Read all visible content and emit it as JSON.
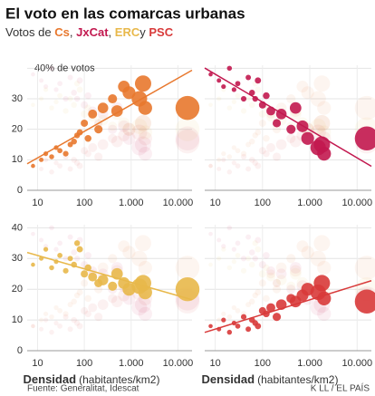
{
  "title": "El voto en las comarcas urbanas",
  "subtitle": {
    "text": "Votos de",
    "separators": [
      ",",
      ",",
      "y"
    ]
  },
  "source": "Fuente: Generalitat, Idescat",
  "credit": "K LL / EL PAÍS",
  "chart_data": [
    {
      "type": "scatter",
      "log_x": true,
      "grid": true,
      "trend": true,
      "ytick_labels": true,
      "x": [
        8,
        12,
        15,
        20,
        25,
        30,
        40,
        50,
        60,
        70,
        80,
        100,
        120,
        150,
        200,
        250,
        400,
        500,
        700,
        900,
        1500,
        1800,
        2000,
        16000
      ],
      "sizes": [
        10,
        15,
        20,
        25,
        20,
        30,
        40,
        35,
        50,
        45,
        60,
        100,
        80,
        190,
        150,
        300,
        200,
        380,
        400,
        500,
        800,
        900,
        600,
        2200
      ],
      "xlim": [
        6,
        20000
      ],
      "xticks": [
        10,
        100,
        {
          "value": 1000,
          "label": "1.000"
        },
        {
          "value": 10000,
          "label": "10.000"
        }
      ],
      "ylim": [
        0,
        41
      ],
      "yticks": [
        0,
        10,
        20,
        30,
        {
          "value": 40,
          "label": "40% de votos"
        }
      ],
      "series": [
        {
          "name": "Cs",
          "color": "#e8782e",
          "values": [
            8,
            10,
            12,
            11,
            14,
            13,
            12,
            15,
            16,
            18,
            19,
            22,
            17,
            25,
            20,
            27,
            30,
            26,
            34,
            32,
            30,
            35,
            27,
            27
          ]
        }
      ]
    },
    {
      "type": "scatter",
      "log_x": true,
      "grid": true,
      "trend": true,
      "ytick_labels": false,
      "x": [
        8,
        12,
        15,
        20,
        25,
        30,
        40,
        50,
        60,
        70,
        80,
        100,
        120,
        150,
        200,
        250,
        400,
        500,
        700,
        900,
        1500,
        1800,
        2000,
        16000
      ],
      "sizes": [
        10,
        15,
        20,
        25,
        20,
        30,
        40,
        35,
        50,
        45,
        60,
        100,
        80,
        190,
        150,
        300,
        200,
        380,
        400,
        500,
        800,
        900,
        600,
        2200
      ],
      "xlim": [
        6,
        20000
      ],
      "xticks": [
        10,
        100,
        {
          "value": 1000,
          "label": "1.000"
        },
        {
          "value": 10000,
          "label": "10.000"
        }
      ],
      "ylim": [
        0,
        41
      ],
      "yticks": [
        0,
        10,
        20,
        30,
        40
      ],
      "series": [
        {
          "name": "JxCat",
          "color": "#c2184f",
          "values": [
            38,
            36,
            34,
            40,
            33,
            35,
            30,
            37,
            32,
            30,
            36,
            28,
            31,
            26,
            22,
            25,
            20,
            27,
            21,
            17,
            14,
            15,
            12,
            17
          ]
        }
      ]
    },
    {
      "type": "scatter",
      "log_x": true,
      "grid": true,
      "trend": true,
      "ytick_labels": true,
      "x": [
        8,
        12,
        15,
        20,
        25,
        30,
        40,
        50,
        60,
        70,
        80,
        100,
        120,
        150,
        200,
        250,
        400,
        500,
        700,
        900,
        1500,
        1800,
        2000,
        16000
      ],
      "sizes": [
        10,
        15,
        20,
        25,
        20,
        30,
        40,
        35,
        50,
        45,
        60,
        100,
        80,
        190,
        150,
        300,
        200,
        380,
        400,
        500,
        800,
        900,
        600,
        2200
      ],
      "xlim": [
        6,
        20000
      ],
      "xticks": [
        10,
        100,
        {
          "value": 1000,
          "label": "1.000"
        },
        {
          "value": 10000,
          "label": "10.000"
        }
      ],
      "ylim": [
        0,
        41
      ],
      "yticks": [
        0,
        10,
        20,
        30,
        40
      ],
      "xlabel": "Densidad",
      "xlabel_unit": "(habitantes/km2)",
      "series": [
        {
          "name": "ERC",
          "color": "#e8b84a",
          "values": [
            28,
            30,
            33,
            27,
            29,
            31,
            26,
            30,
            28,
            35,
            33,
            25,
            27,
            24,
            22,
            23,
            21,
            25,
            22,
            20,
            21,
            22,
            19,
            20
          ]
        }
      ]
    },
    {
      "type": "scatter",
      "log_x": true,
      "grid": true,
      "trend": true,
      "ytick_labels": false,
      "x": [
        8,
        12,
        15,
        20,
        25,
        30,
        40,
        50,
        60,
        70,
        80,
        100,
        120,
        150,
        200,
        250,
        400,
        500,
        700,
        900,
        1500,
        1800,
        2000,
        16000
      ],
      "sizes": [
        10,
        15,
        20,
        25,
        20,
        30,
        40,
        35,
        50,
        45,
        60,
        100,
        80,
        190,
        150,
        300,
        200,
        380,
        400,
        500,
        800,
        900,
        600,
        2200
      ],
      "xlim": [
        6,
        20000
      ],
      "xticks": [
        10,
        100,
        {
          "value": 1000,
          "label": "1.000"
        },
        {
          "value": 10000,
          "label": "10.000"
        }
      ],
      "ylim": [
        0,
        41
      ],
      "yticks": [
        0,
        10,
        20,
        30,
        40
      ],
      "xlabel": "Densidad",
      "xlabel_unit": "(habitantes/km2)",
      "series": [
        {
          "name": "PSC",
          "color": "#d83a3a",
          "values": [
            8,
            7,
            10,
            6,
            9,
            8,
            11,
            7,
            10,
            9,
            8,
            13,
            12,
            14,
            11,
            15,
            17,
            16,
            18,
            20,
            19,
            22,
            17,
            16
          ]
        }
      ]
    }
  ]
}
